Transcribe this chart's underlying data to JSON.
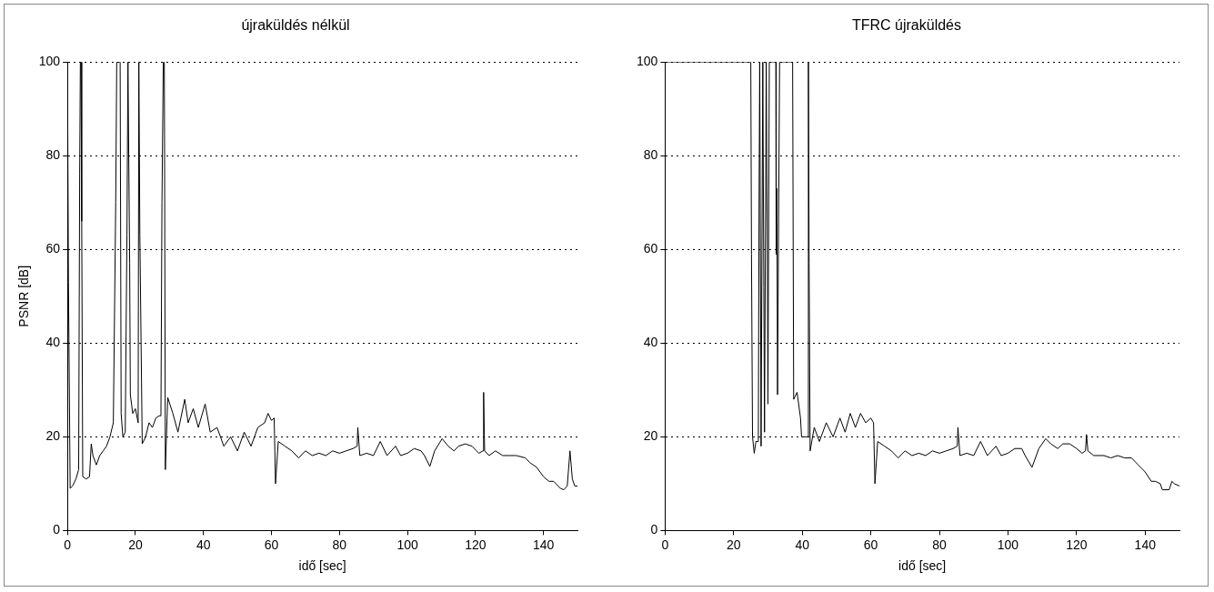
{
  "chart_data": [
    {
      "type": "line",
      "title": "újraküldés nélkül",
      "xlabel": "idő [sec]",
      "ylabel": "PSNR [dB]",
      "x": [
        0,
        0.2,
        0.3,
        0.8,
        1.5,
        2.5,
        3.3,
        3.6,
        3.8,
        4.0,
        4.2,
        4.5,
        5.5,
        6.5,
        7.0,
        7.5,
        8.5,
        9.5,
        10.5,
        11.5,
        12.5,
        13.5,
        14.2,
        14.5,
        15.5,
        15.8,
        16.3,
        17.0,
        17.5,
        17.8,
        18.3,
        18.5,
        19.2,
        20.0,
        20.8,
        21.0,
        21.3,
        22.0,
        23.0,
        24.0,
        25.0,
        26.0,
        27.0,
        27.5,
        27.8,
        28.2,
        28.5,
        28.8,
        29.5,
        31,
        32.5,
        34.5,
        35.5,
        37,
        38.5,
        40.5,
        42,
        44,
        46,
        48,
        50,
        52,
        54,
        56,
        58,
        59,
        60,
        60.8,
        61.2,
        62,
        64,
        66,
        68,
        70,
        72,
        74,
        76,
        78,
        80,
        82,
        84,
        85.2,
        85.4,
        86,
        88,
        90,
        92,
        94,
        96.5,
        98,
        100,
        102,
        104,
        105,
        106.6,
        108,
        110.2,
        112,
        113.7,
        115,
        117,
        119,
        121,
        122.2,
        122.4,
        122.7,
        124,
        125.9,
        128,
        130,
        132,
        134.7,
        136,
        138,
        140,
        141.6,
        143,
        145,
        146,
        147,
        147.8,
        148.5,
        149.2,
        150
      ],
      "values": [
        100,
        100,
        53,
        9,
        9.5,
        11,
        13,
        76,
        100,
        100,
        66,
        11.5,
        11,
        11.5,
        18.5,
        16,
        14,
        16,
        17,
        18,
        20,
        23,
        70,
        100,
        100,
        25,
        20,
        21,
        63,
        100,
        57,
        29,
        25,
        26,
        23,
        100,
        63,
        18.5,
        20,
        23,
        22,
        24,
        24.5,
        24.5,
        70,
        100,
        100,
        13,
        28.4,
        25,
        21,
        28,
        23,
        26,
        22,
        27,
        21,
        22,
        18,
        20,
        17,
        21,
        18,
        22,
        23,
        25,
        23.5,
        24,
        10,
        19,
        18,
        17,
        15.5,
        17,
        16,
        16.5,
        16,
        17,
        16.5,
        17,
        17.5,
        18,
        22,
        16,
        16.5,
        16,
        19,
        16,
        18,
        16,
        16.5,
        17.5,
        17,
        16,
        13.7,
        17,
        19.6,
        18,
        17,
        18,
        18.5,
        18,
        16.5,
        17,
        29.5,
        17,
        16,
        17,
        16,
        16,
        16,
        15.5,
        14.5,
        13.5,
        11.5,
        10.5,
        10.5,
        9,
        8.7,
        9.5,
        17,
        11,
        9.5,
        9.5
      ],
      "color": "#000000",
      "marker": "none",
      "xlim": [
        0,
        150
      ],
      "xticks": [
        0,
        20,
        40,
        60,
        80,
        100,
        120,
        140
      ],
      "ylim": [
        0,
        100
      ],
      "yticks": [
        0,
        20,
        40,
        60,
        80,
        100
      ],
      "grid": "y",
      "legend": false
    },
    {
      "type": "line",
      "title": "TFRC újraküldés",
      "xlabel": "idő [sec]",
      "x": [
        0,
        25,
        25.2,
        25.5,
        26,
        26.5,
        27.2,
        27.4,
        27.6,
        28,
        28.5,
        28.8,
        29,
        29.5,
        29.8,
        30,
        30.4,
        32.3,
        32.4,
        32.6,
        32.8,
        33.4,
        37.2,
        37.5,
        38.5,
        39.5,
        39.8,
        41,
        41.6,
        41.8,
        42,
        42.3,
        43.5,
        45,
        47,
        49,
        51,
        52.5,
        54,
        55.5,
        57,
        58.5,
        60,
        60.8,
        61.2,
        62,
        64,
        66,
        68,
        70,
        72,
        74,
        76,
        78,
        80,
        82,
        84,
        85.2,
        85.4,
        86,
        88,
        90,
        92,
        94,
        96.5,
        98,
        100,
        102,
        104,
        105,
        107,
        109,
        111,
        112.5,
        114.5,
        116,
        118,
        120,
        121.6,
        122.6,
        122.9,
        123.3,
        125,
        128,
        130,
        132,
        134,
        136,
        138,
        140,
        141.8,
        143,
        144.4,
        145,
        147,
        147.8,
        148.5,
        150
      ],
      "values": [
        100,
        100,
        59,
        20,
        16.5,
        19,
        19,
        68,
        100,
        18,
        100,
        52,
        21,
        100,
        62,
        27,
        100,
        100,
        59,
        73,
        29,
        100,
        100,
        28,
        29.5,
        24,
        20,
        20,
        20,
        100,
        57,
        17,
        22,
        19,
        23,
        20,
        24,
        21,
        25,
        22,
        25,
        23,
        24,
        23,
        10,
        19,
        18,
        17,
        15.5,
        17,
        16,
        16.5,
        16,
        17,
        16.5,
        17,
        17.5,
        18,
        22,
        16,
        16.5,
        16,
        19,
        16,
        18,
        16,
        16.5,
        17.5,
        17.5,
        16,
        13.5,
        17.5,
        19.6,
        18.5,
        17.5,
        18.5,
        18.5,
        17.5,
        16.5,
        17,
        20.5,
        17,
        16,
        16,
        15.5,
        16,
        15.5,
        15.5,
        14,
        12.5,
        10.5,
        10.5,
        10,
        8.7,
        8.7,
        10.5,
        10,
        9.5
      ],
      "color": "#000000",
      "marker": "none",
      "xlim": [
        0,
        150
      ],
      "xticks": [
        0,
        20,
        40,
        60,
        80,
        100,
        120,
        140
      ],
      "ylim": [
        0,
        100
      ],
      "yticks": [
        0,
        20,
        40,
        60,
        80,
        100
      ],
      "grid": "y",
      "legend": false
    }
  ]
}
